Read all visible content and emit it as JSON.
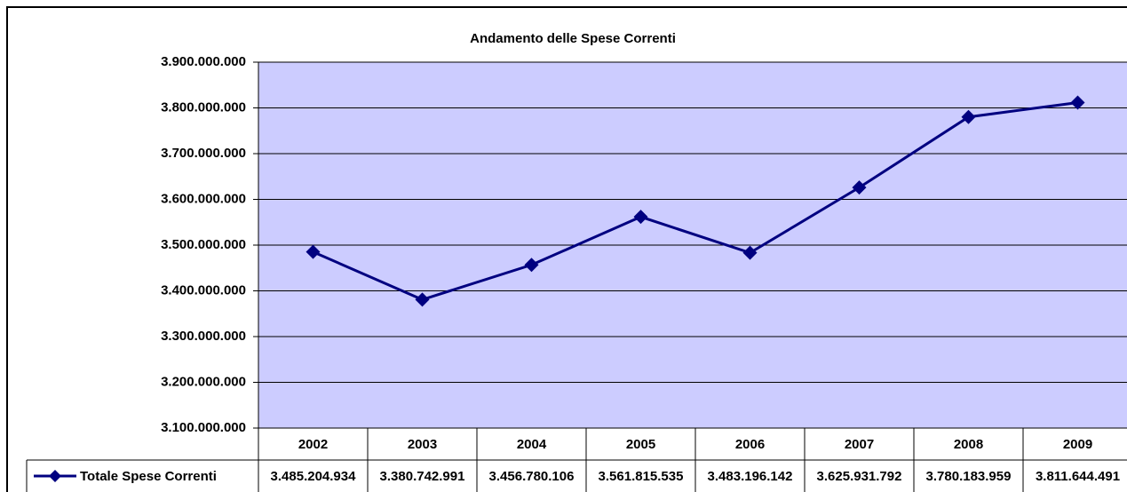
{
  "chart_data": {
    "type": "line",
    "title": "Andamento delle Spese Correnti",
    "categories": [
      "2002",
      "2003",
      "2004",
      "2005",
      "2006",
      "2007",
      "2008",
      "2009"
    ],
    "series": [
      {
        "name": "Totale Spese Correnti",
        "color": "#000080",
        "values": [
          3485204934,
          3380742991,
          3456780106,
          3561815535,
          3483196142,
          3625931792,
          3780183959,
          3811644491
        ],
        "value_labels": [
          "3.485.204.934",
          "3.380.742.991",
          "3.456.780.106",
          "3.561.815.535",
          "3.483.196.142",
          "3.625.931.792",
          "3.780.183.959",
          "3.811.644.491"
        ]
      }
    ],
    "ylim": [
      3100000000,
      3900000000
    ],
    "yticks": [
      {
        "value": 3100000000,
        "label": "3.100.000.000"
      },
      {
        "value": 3200000000,
        "label": "3.200.000.000"
      },
      {
        "value": 3300000000,
        "label": "3.300.000.000"
      },
      {
        "value": 3400000000,
        "label": "3.400.000.000"
      },
      {
        "value": 3500000000,
        "label": "3.500.000.000"
      },
      {
        "value": 3600000000,
        "label": "3.600.000.000"
      },
      {
        "value": 3700000000,
        "label": "3.700.000.000"
      },
      {
        "value": 3800000000,
        "label": "3.800.000.000"
      },
      {
        "value": 3900000000,
        "label": "3.900.000.000"
      }
    ],
    "grid": true,
    "plot_background": "#ccccff"
  }
}
